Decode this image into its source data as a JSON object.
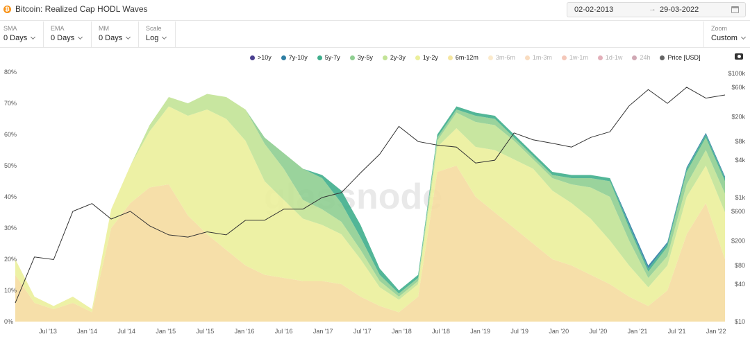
{
  "header": {
    "title": "Bitcoin: Realized Cap HODL Waves",
    "coin_symbol": "₿",
    "date_from": "02-02-2013",
    "date_arrow": "→",
    "date_to": "29-03-2022"
  },
  "controls": {
    "sma": {
      "label": "SMA",
      "value": "0 Days"
    },
    "ema": {
      "label": "EMA",
      "value": "0 Days"
    },
    "mm": {
      "label": "MM",
      "value": "0 Days"
    },
    "scale": {
      "label": "Scale",
      "value": "Log"
    },
    "zoom": {
      "label": "Zoom",
      "value": "Custom"
    }
  },
  "watermark": "glassnode",
  "chart_data": {
    "type": "area",
    "stacked": true,
    "grid": false,
    "legend_position": "top-right",
    "x_tick_labels": [
      "Jul '13",
      "Jan '14",
      "Jul '14",
      "Jan '15",
      "Jul '15",
      "Jan '16",
      "Jul '16",
      "Jan '17",
      "Jul '17",
      "Jan '18",
      "Jul '18",
      "Jan '19",
      "Jul '19",
      "Jan '20",
      "Jul '20",
      "Jan '21",
      "Jul '21",
      "Jan '22"
    ],
    "y_left_ticks": [
      "0%",
      "10%",
      "20%",
      "30%",
      "40%",
      "50%",
      "60%",
      "70%",
      "80%"
    ],
    "y_left_range": [
      0,
      80
    ],
    "y_right_ticks": [
      "$10",
      "$40",
      "$80",
      "$200",
      "$600",
      "$1k",
      "$4k",
      "$8k",
      "$20k",
      "$60k",
      "$100k"
    ],
    "y_right_scale": "log",
    "legend": [
      {
        "name": ">10y",
        "color": "#4a3f8f",
        "active": true
      },
      {
        "name": "7y-10y",
        "color": "#2e7ea3",
        "active": true
      },
      {
        "name": "5y-7y",
        "color": "#3fae8c",
        "active": true
      },
      {
        "name": "3y-5y",
        "color": "#8fce91",
        "active": true
      },
      {
        "name": "2y-3y",
        "color": "#c2e396",
        "active": true
      },
      {
        "name": "1y-2y",
        "color": "#ebef9b",
        "active": true
      },
      {
        "name": "6m-12m",
        "color": "#f5e6a0",
        "active": true
      },
      {
        "name": "3m-6m",
        "color": "#f6c66e",
        "active": false
      },
      {
        "name": "1m-3m",
        "color": "#ef9a4a",
        "active": false
      },
      {
        "name": "1w-1m",
        "color": "#e0613a",
        "active": false
      },
      {
        "name": "1d-1w",
        "color": "#b01f3b",
        "active": false
      },
      {
        "name": "24h",
        "color": "#7a0a2a",
        "active": false
      },
      {
        "name": "Price [USD]",
        "color": "#666666",
        "active": true
      }
    ],
    "x": [
      "2013-02",
      "2013-05",
      "2013-08",
      "2013-11",
      "2014-01",
      "2014-04",
      "2014-07",
      "2014-10",
      "2015-01",
      "2015-04",
      "2015-07",
      "2015-10",
      "2016-01",
      "2016-04",
      "2016-07",
      "2016-10",
      "2017-01",
      "2017-04",
      "2017-07",
      "2017-10",
      "2018-01",
      "2018-04",
      "2018-07",
      "2018-10",
      "2019-01",
      "2019-04",
      "2019-07",
      "2019-10",
      "2020-01",
      "2020-04",
      "2020-07",
      "2020-10",
      "2021-01",
      "2021-04",
      "2021-07",
      "2021-10",
      "2022-01",
      "2022-03"
    ],
    "series": [
      {
        "name": "6m-12m",
        "color": "#f5dca0",
        "values": [
          15,
          6,
          4,
          6,
          3,
          30,
          38,
          43,
          44,
          34,
          28,
          23,
          18,
          15,
          14,
          13,
          13,
          12,
          8,
          5,
          3,
          8,
          48,
          50,
          40,
          35,
          30,
          25,
          20,
          18,
          15,
          12,
          8,
          5,
          10,
          28,
          38,
          20
        ]
      },
      {
        "name": "1y-2y",
        "color": "#ebef9b",
        "values": [
          5,
          2,
          1,
          2,
          1,
          6,
          12,
          18,
          25,
          32,
          40,
          42,
          40,
          30,
          25,
          20,
          18,
          16,
          12,
          6,
          4,
          4,
          8,
          12,
          16,
          20,
          22,
          24,
          22,
          20,
          18,
          14,
          10,
          6,
          8,
          12,
          12,
          15
        ]
      },
      {
        "name": "2y-3y",
        "color": "#c2e396",
        "values": [
          0,
          0,
          0,
          0,
          0,
          0,
          0,
          2,
          3,
          4,
          5,
          7,
          10,
          12,
          10,
          6,
          5,
          4,
          3,
          2,
          1,
          1,
          2,
          5,
          8,
          8,
          6,
          3,
          4,
          6,
          10,
          14,
          8,
          3,
          3,
          4,
          5,
          6
        ]
      },
      {
        "name": "3y-5y",
        "color": "#8fce91",
        "values": [
          0,
          0,
          0,
          0,
          0,
          0,
          0,
          0,
          0,
          0,
          0,
          0,
          0,
          2,
          5,
          10,
          10,
          6,
          4,
          2,
          1,
          1,
          1,
          1,
          2,
          2,
          1,
          1,
          1,
          2,
          3,
          5,
          4,
          2,
          3,
          4,
          4,
          4
        ]
      },
      {
        "name": "5y-7y",
        "color": "#3fae8c",
        "values": [
          0,
          0,
          0,
          0,
          0,
          0,
          0,
          0,
          0,
          0,
          0,
          0,
          0,
          0,
          0,
          0,
          1,
          4,
          4,
          2,
          1,
          1,
          1,
          1,
          1,
          1,
          1,
          1,
          1,
          1,
          1,
          1,
          1,
          1,
          1,
          1,
          1,
          1
        ]
      },
      {
        "name": "7y-10y",
        "color": "#2e7ea3",
        "values": [
          0,
          0,
          0,
          0,
          0,
          0,
          0,
          0,
          0,
          0,
          0,
          0,
          0,
          0,
          0,
          0,
          0,
          0,
          0,
          0,
          0,
          0,
          0,
          0,
          0,
          0,
          0,
          0,
          0,
          0,
          0,
          0,
          1,
          1,
          0.5,
          0.5,
          0.5,
          0.5
        ]
      }
    ],
    "price_series": {
      "name": "Price [USD]",
      "values": [
        20,
        110,
        100,
        600,
        800,
        450,
        600,
        350,
        250,
        230,
        280,
        250,
        430,
        430,
        650,
        650,
        1000,
        1200,
        2500,
        5000,
        14000,
        8000,
        7000,
        6500,
        3600,
        4000,
        11000,
        8500,
        7500,
        6500,
        9300,
        11500,
        30000,
        55000,
        33000,
        60000,
        40000,
        45000
      ]
    }
  }
}
